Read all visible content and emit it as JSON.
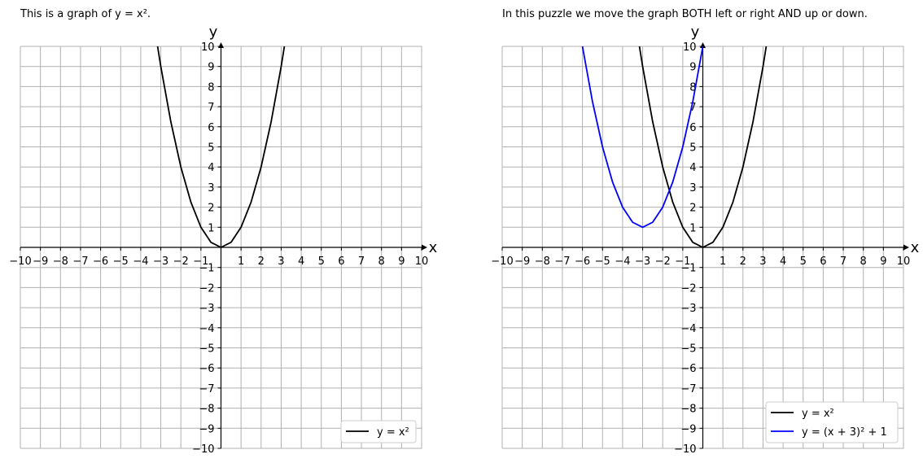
{
  "chart_data": [
    {
      "type": "line",
      "title": "This is a graph of y = x².",
      "xlabel": "x",
      "ylabel": "y",
      "xlim": [
        -10,
        10
      ],
      "ylim": [
        -10,
        10
      ],
      "grid": true,
      "xticks": [
        -10,
        -9,
        -8,
        -7,
        -6,
        -5,
        -4,
        -3,
        -2,
        -1,
        1,
        2,
        3,
        4,
        5,
        6,
        7,
        8,
        9,
        10
      ],
      "yticks": [
        -10,
        -9,
        -8,
        -7,
        -6,
        -5,
        -4,
        -3,
        -2,
        -1,
        1,
        2,
        3,
        4,
        5,
        6,
        7,
        8,
        9,
        10
      ],
      "xtick_labels": [
        "−10",
        "−9",
        "−8",
        "−7",
        "−6",
        "−5",
        "−4",
        "−3",
        "−2",
        "−1",
        "1",
        "2",
        "3",
        "4",
        "5",
        "6",
        "7",
        "8",
        "9",
        "10"
      ],
      "ytick_labels": [
        "−10",
        "−9",
        "−8",
        "−7",
        "−6",
        "−5",
        "−4",
        "−3",
        "−2",
        "−1",
        "1",
        "2",
        "3",
        "4",
        "5",
        "6",
        "7",
        "8",
        "9",
        "10"
      ],
      "legend_position": "lower-right",
      "series": [
        {
          "name": "y = x²",
          "color": "#000000",
          "points": [
            [
              -3.16,
              10
            ],
            [
              -3,
              9
            ],
            [
              -2.5,
              6.25
            ],
            [
              -2,
              4
            ],
            [
              -1.5,
              2.25
            ],
            [
              -1,
              1
            ],
            [
              -0.5,
              0.25
            ],
            [
              0,
              0
            ],
            [
              0.5,
              0.25
            ],
            [
              1,
              1
            ],
            [
              1.5,
              2.25
            ],
            [
              2,
              4
            ],
            [
              2.5,
              6.25
            ],
            [
              3,
              9
            ],
            [
              3.16,
              10
            ]
          ]
        }
      ]
    },
    {
      "type": "line",
      "title": "In this puzzle we move the graph BOTH left or right AND up or down.",
      "xlabel": "x",
      "ylabel": "y",
      "xlim": [
        -10,
        10
      ],
      "ylim": [
        -10,
        10
      ],
      "grid": true,
      "xticks": [
        -10,
        -9,
        -8,
        -7,
        -6,
        -5,
        -4,
        -3,
        -2,
        -1,
        1,
        2,
        3,
        4,
        5,
        6,
        7,
        8,
        9,
        10
      ],
      "yticks": [
        -10,
        -9,
        -8,
        -7,
        -6,
        -5,
        -4,
        -3,
        -2,
        -1,
        1,
        2,
        3,
        4,
        5,
        6,
        7,
        8,
        9,
        10
      ],
      "xtick_labels": [
        "−10",
        "−9",
        "−8",
        "−7",
        "−6",
        "−5",
        "−4",
        "−3",
        "−2",
        "−1",
        "1",
        "2",
        "3",
        "4",
        "5",
        "6",
        "7",
        "8",
        "9",
        "10"
      ],
      "ytick_labels": [
        "−10",
        "−9",
        "−8",
        "−7",
        "−6",
        "−5",
        "−4",
        "−3",
        "−2",
        "−1",
        "1",
        "2",
        "3",
        "4",
        "5",
        "6",
        "7",
        "8",
        "9",
        "10"
      ],
      "legend_position": "lower-right",
      "series": [
        {
          "name": "y = x²",
          "color": "#000000",
          "points": [
            [
              -3.16,
              10
            ],
            [
              -3,
              9
            ],
            [
              -2.5,
              6.25
            ],
            [
              -2,
              4
            ],
            [
              -1.5,
              2.25
            ],
            [
              -1,
              1
            ],
            [
              -0.5,
              0.25
            ],
            [
              0,
              0
            ],
            [
              0.5,
              0.25
            ],
            [
              1,
              1
            ],
            [
              1.5,
              2.25
            ],
            [
              2,
              4
            ],
            [
              2.5,
              6.25
            ],
            [
              3,
              9
            ],
            [
              3.16,
              10
            ]
          ]
        },
        {
          "name": "y = (x + 3)² + 1",
          "color": "#0000ff",
          "points": [
            [
              -6,
              10
            ],
            [
              -5.5,
              7.25
            ],
            [
              -5,
              5
            ],
            [
              -4.5,
              3.25
            ],
            [
              -4,
              2
            ],
            [
              -3.5,
              1.25
            ],
            [
              -3,
              1
            ],
            [
              -2.5,
              1.25
            ],
            [
              -2,
              2
            ],
            [
              -1.5,
              3.25
            ],
            [
              -1,
              5
            ],
            [
              -0.5,
              7.25
            ],
            [
              0,
              10
            ]
          ]
        }
      ]
    }
  ]
}
